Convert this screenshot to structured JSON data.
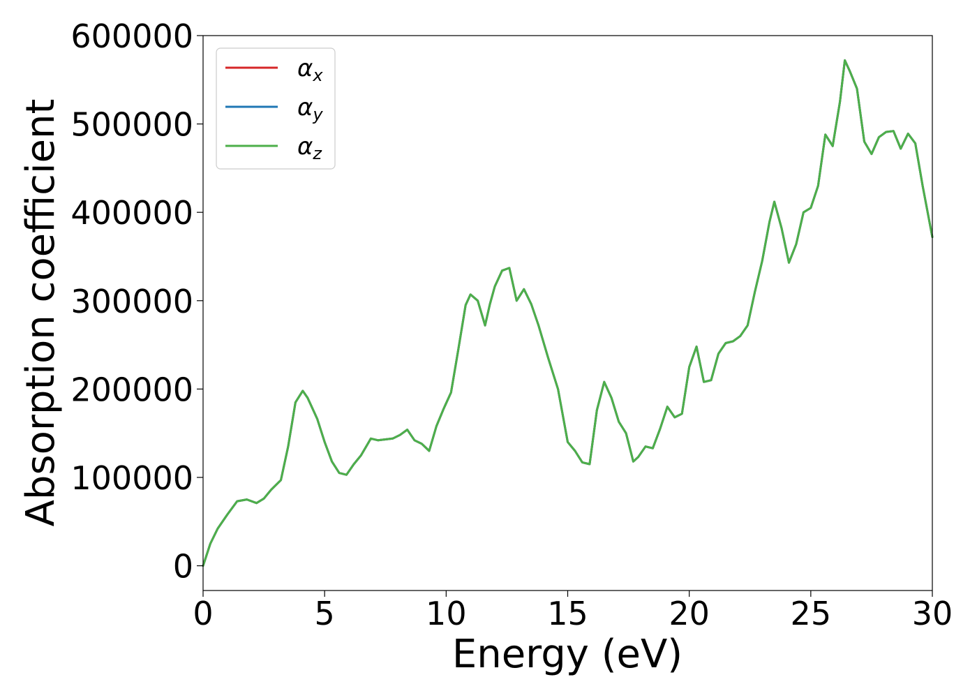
{
  "chart_data": {
    "type": "line",
    "xlabel": "Energy (eV)",
    "ylabel": "Absorption coefficient",
    "xlim": [
      0,
      30
    ],
    "ylim": [
      -28000,
      600000
    ],
    "xticks": [
      0,
      5,
      10,
      15,
      20,
      25,
      30
    ],
    "yticks": [
      0,
      100000,
      200000,
      300000,
      400000,
      500000,
      600000
    ],
    "xtick_labels": [
      "0",
      "5",
      "10",
      "15",
      "20",
      "25",
      "30"
    ],
    "ytick_labels": [
      "0",
      "100000",
      "200000",
      "300000",
      "400000",
      "500000",
      "600000"
    ],
    "grid": false,
    "legend_position": "top-left",
    "x": [
      0,
      0.3,
      0.6,
      1.0,
      1.4,
      1.8,
      2.2,
      2.5,
      2.8,
      3.2,
      3.5,
      3.8,
      4.1,
      4.3,
      4.5,
      4.7,
      5.0,
      5.3,
      5.6,
      5.9,
      6.2,
      6.5,
      6.9,
      7.2,
      7.5,
      7.8,
      8.1,
      8.4,
      8.7,
      9.0,
      9.3,
      9.6,
      9.9,
      10.2,
      10.5,
      10.8,
      11.0,
      11.3,
      11.6,
      11.8,
      12.0,
      12.3,
      12.6,
      12.9,
      13.2,
      13.5,
      13.8,
      14.2,
      14.6,
      15.0,
      15.3,
      15.6,
      15.9,
      16.2,
      16.5,
      16.8,
      17.1,
      17.4,
      17.7,
      17.9,
      18.2,
      18.5,
      18.8,
      19.1,
      19.4,
      19.7,
      20.0,
      20.3,
      20.6,
      20.9,
      21.2,
      21.5,
      21.8,
      22.1,
      22.4,
      22.7,
      23.0,
      23.3,
      23.5,
      23.8,
      24.1,
      24.4,
      24.7,
      25.0,
      25.3,
      25.6,
      25.9,
      26.2,
      26.4,
      26.6,
      26.9,
      27.2,
      27.5,
      27.8,
      28.1,
      28.4,
      28.7,
      29.0,
      29.3,
      29.6,
      30.0
    ],
    "series": [
      {
        "name": "α_x",
        "color": "#d62728",
        "values": [
          0,
          25000,
          42000,
          58000,
          73000,
          75000,
          71000,
          76000,
          86000,
          97000,
          135000,
          185000,
          198000,
          190000,
          178000,
          166000,
          140000,
          118000,
          105000,
          103000,
          115000,
          125000,
          144000,
          142000,
          143000,
          144000,
          148000,
          154000,
          142000,
          138000,
          130000,
          158000,
          178000,
          196000,
          245000,
          295000,
          307000,
          300000,
          272000,
          296000,
          316000,
          334000,
          337000,
          300000,
          313000,
          296000,
          272000,
          235000,
          200000,
          140000,
          130000,
          117000,
          115000,
          176000,
          208000,
          190000,
          163000,
          150000,
          118000,
          123000,
          135000,
          133000,
          155000,
          180000,
          168000,
          172000,
          225000,
          248000,
          208000,
          210000,
          240000,
          252000,
          254000,
          260000,
          272000,
          310000,
          345000,
          389000,
          412000,
          382000,
          343000,
          364000,
          400000,
          405000,
          430000,
          488000,
          475000,
          525000,
          572000,
          560000,
          540000,
          480000,
          466000,
          485000,
          491000,
          492000,
          472000,
          489000,
          478000,
          430000,
          372000
        ]
      },
      {
        "name": "α_y",
        "color": "#1f77b4",
        "values": [
          0,
          25000,
          42000,
          58000,
          73000,
          75000,
          71000,
          76000,
          86000,
          97000,
          135000,
          185000,
          198000,
          190000,
          178000,
          166000,
          140000,
          118000,
          105000,
          103000,
          115000,
          125000,
          144000,
          142000,
          143000,
          144000,
          148000,
          154000,
          142000,
          138000,
          130000,
          158000,
          178000,
          196000,
          245000,
          295000,
          307000,
          300000,
          272000,
          296000,
          316000,
          334000,
          337000,
          300000,
          313000,
          296000,
          272000,
          235000,
          200000,
          140000,
          130000,
          117000,
          115000,
          176000,
          208000,
          190000,
          163000,
          150000,
          118000,
          123000,
          135000,
          133000,
          155000,
          180000,
          168000,
          172000,
          225000,
          248000,
          208000,
          210000,
          240000,
          252000,
          254000,
          260000,
          272000,
          310000,
          345000,
          389000,
          412000,
          382000,
          343000,
          364000,
          400000,
          405000,
          430000,
          488000,
          475000,
          525000,
          572000,
          560000,
          540000,
          480000,
          466000,
          485000,
          491000,
          492000,
          472000,
          489000,
          478000,
          430000,
          372000
        ]
      },
      {
        "name": "α_z",
        "color": "#4daf4a",
        "values": [
          0,
          25000,
          42000,
          58000,
          73000,
          75000,
          71000,
          76000,
          86000,
          97000,
          135000,
          185000,
          198000,
          190000,
          178000,
          166000,
          140000,
          118000,
          105000,
          103000,
          115000,
          125000,
          144000,
          142000,
          143000,
          144000,
          148000,
          154000,
          142000,
          138000,
          130000,
          158000,
          178000,
          196000,
          245000,
          295000,
          307000,
          300000,
          272000,
          296000,
          316000,
          334000,
          337000,
          300000,
          313000,
          296000,
          272000,
          235000,
          200000,
          140000,
          130000,
          117000,
          115000,
          176000,
          208000,
          190000,
          163000,
          150000,
          118000,
          123000,
          135000,
          133000,
          155000,
          180000,
          168000,
          172000,
          225000,
          248000,
          208000,
          210000,
          240000,
          252000,
          254000,
          260000,
          272000,
          310000,
          345000,
          389000,
          412000,
          382000,
          343000,
          364000,
          400000,
          405000,
          430000,
          488000,
          475000,
          525000,
          572000,
          560000,
          540000,
          480000,
          466000,
          485000,
          491000,
          492000,
          472000,
          489000,
          478000,
          430000,
          372000
        ]
      }
    ],
    "legend": [
      {
        "base": "α",
        "sub": "x"
      },
      {
        "base": "α",
        "sub": "y"
      },
      {
        "base": "α",
        "sub": "z"
      }
    ]
  }
}
